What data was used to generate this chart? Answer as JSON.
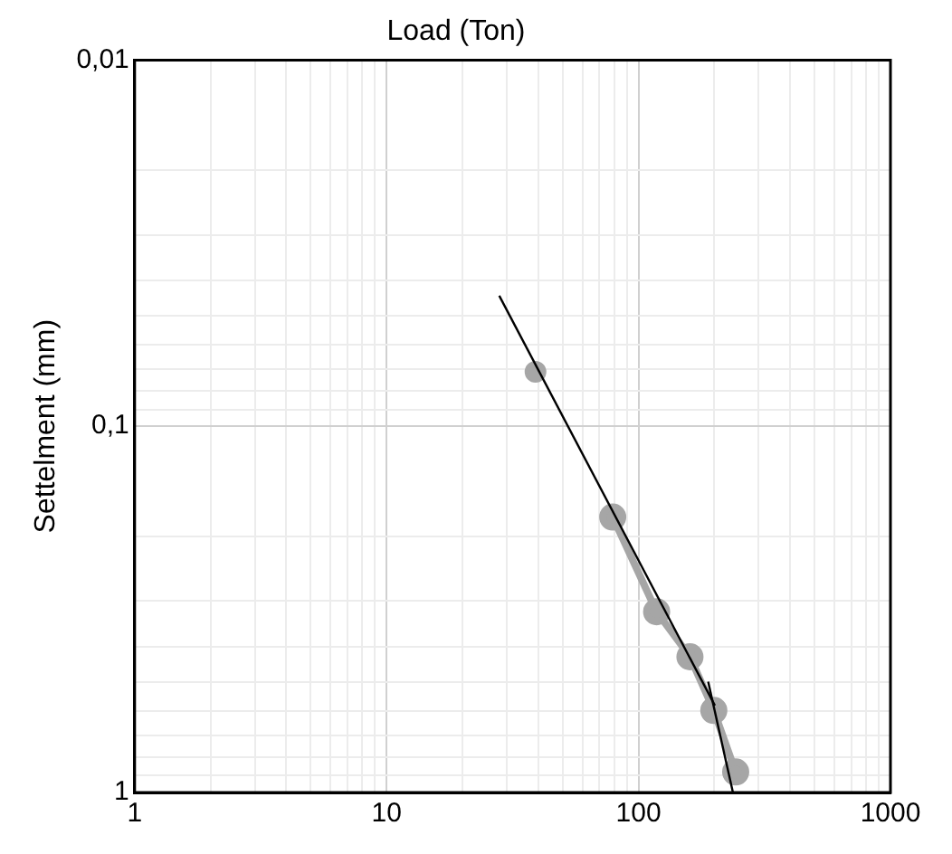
{
  "chart_data": {
    "type": "line",
    "xlabel": "Load (Ton)",
    "ylabel": "Settelment (mm)",
    "log": "xy",
    "grid": true,
    "legend": false,
    "xlim": [
      1,
      1000
    ],
    "ylim": [
      1,
      0.01
    ],
    "xticks": [
      1,
      {
        "value": 2,
        "label": null
      },
      {
        "value": 3,
        "label": null
      },
      {
        "value": 4,
        "label": null
      },
      {
        "value": 5,
        "label": null
      },
      {
        "value": 6,
        "label": null
      },
      {
        "value": 7,
        "label": null
      },
      {
        "value": 8,
        "label": null
      },
      {
        "value": 9,
        "label": null
      },
      10,
      {
        "value": 20,
        "label": null
      },
      {
        "value": 30,
        "label": null
      },
      {
        "value": 40,
        "label": null
      },
      {
        "value": 50,
        "label": null
      },
      {
        "value": 60,
        "label": null
      },
      {
        "value": 70,
        "label": null
      },
      {
        "value": 80,
        "label": null
      },
      {
        "value": 90,
        "label": null
      },
      100,
      {
        "value": 200,
        "label": null
      },
      {
        "value": 300,
        "label": null
      },
      {
        "value": 400,
        "label": null
      },
      {
        "value": 500,
        "label": null
      },
      {
        "value": 600,
        "label": null
      },
      {
        "value": 700,
        "label": null
      },
      {
        "value": 800,
        "label": null
      },
      {
        "value": 900,
        "label": null
      },
      1000
    ],
    "yticks": [
      {
        "value": 0.01,
        "label": "0,01"
      },
      {
        "value": 0.02,
        "label": null
      },
      {
        "value": 0.03,
        "label": null
      },
      {
        "value": 0.04,
        "label": null
      },
      {
        "value": 0.05,
        "label": null
      },
      {
        "value": 0.06,
        "label": null
      },
      {
        "value": 0.07,
        "label": null
      },
      {
        "value": 0.08,
        "label": null
      },
      {
        "value": 0.09,
        "label": null
      },
      {
        "value": 0.1,
        "label": "0,1"
      },
      {
        "value": 0.2,
        "label": null
      },
      {
        "value": 0.3,
        "label": null
      },
      {
        "value": 0.4,
        "label": null
      },
      {
        "value": 0.5,
        "label": null
      },
      {
        "value": 0.6,
        "label": null
      },
      {
        "value": 0.7,
        "label": null
      },
      {
        "value": 0.8,
        "label": null
      },
      {
        "value": 0.9,
        "label": null
      },
      {
        "value": 1,
        "label": "1"
      }
    ],
    "series": [
      {
        "type": "scatter",
        "color": "#a6a6a6",
        "marker": "circle",
        "x": [
          39
        ],
        "values": [
          0.071
        ]
      },
      {
        "color": "#a6a6a6",
        "marker": "circle",
        "line_style": "solid",
        "x": [
          79,
          118,
          160,
          199,
          243
        ],
        "values": [
          0.177,
          0.321,
          0.426,
          0.597,
          0.879
        ]
      },
      {
        "type": "line",
        "color": "#000000",
        "marker": "none",
        "line_style": "solid",
        "x": [
          28,
          201
        ],
        "values": [
          0.044,
          0.579
        ]
      },
      {
        "type": "line",
        "color": "#000000",
        "marker": "none",
        "line_style": "solid",
        "x": [
          189,
          237
        ],
        "values": [
          0.498,
          1
        ]
      }
    ]
  }
}
